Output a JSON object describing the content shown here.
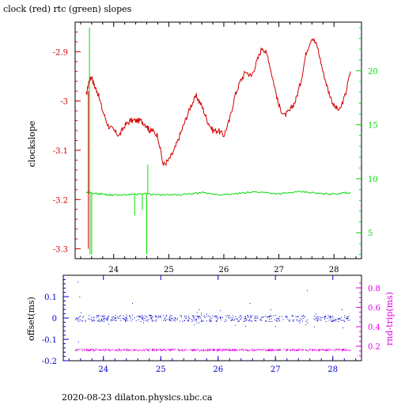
{
  "title": "clock (red) rtc (green) slopes",
  "footer": "2020-08-23  dilaton.physics.ubc.ca",
  "colors": {
    "red": "#d40000",
    "green": "#00dd00",
    "blue": "#0000cc",
    "magenta": "#e000e0",
    "black": "#000000"
  },
  "chart_data": [
    {
      "type": "line",
      "ylabel": "clockslope",
      "xlim": [
        23.3,
        28.5
      ],
      "ylim": [
        -3.32,
        -2.84
      ],
      "x_ticks": [
        "24",
        "25",
        "26",
        "27",
        "28"
      ],
      "y_ticks": [
        "-2.9",
        "-3",
        "-3.1",
        "-3.2",
        "-3.3"
      ],
      "right_ylim": [
        2.6,
        24.5
      ],
      "right_y_ticks": [
        "5",
        "10",
        "15",
        "20"
      ],
      "series": [
        {
          "color": "red",
          "x": [
            23.5,
            23.55,
            23.6,
            23.65,
            23.7,
            23.8,
            23.9,
            24.0,
            24.1,
            24.2,
            24.3,
            24.4,
            24.5,
            24.6,
            24.65,
            24.7,
            24.8,
            24.9,
            25.0,
            25.1,
            25.2,
            25.3,
            25.4,
            25.5,
            25.6,
            25.7,
            25.8,
            25.9,
            26.0,
            26.1,
            26.2,
            26.3,
            26.4,
            26.5,
            26.6,
            26.7,
            26.8,
            26.9,
            27.0,
            27.1,
            27.2,
            27.3,
            27.4,
            27.5,
            27.6,
            27.7,
            27.8,
            27.9,
            28.0,
            28.1,
            28.2,
            28.3
          ],
          "y": [
            -2.99,
            -2.96,
            -2.95,
            -2.97,
            -2.98,
            -3.02,
            -3.05,
            -3.06,
            -3.07,
            -3.05,
            -3.04,
            -3.04,
            -3.04,
            -3.05,
            -3.06,
            -3.06,
            -3.07,
            -3.13,
            -3.12,
            -3.1,
            -3.07,
            -3.04,
            -3.01,
            -2.99,
            -3.01,
            -3.04,
            -3.06,
            -3.06,
            -3.07,
            -3.04,
            -2.99,
            -2.96,
            -2.94,
            -2.95,
            -2.92,
            -2.89,
            -2.91,
            -2.96,
            -3.01,
            -3.03,
            -3.02,
            -3.0,
            -2.96,
            -2.9,
            -2.87,
            -2.89,
            -2.94,
            -2.98,
            -3.01,
            -3.02,
            -2.99,
            -2.94
          ]
        },
        {
          "color": "green",
          "x": [
            23.5,
            23.6,
            23.7,
            23.8,
            23.9,
            24.0,
            24.2,
            24.4,
            24.6,
            24.8,
            25.0,
            25.2,
            25.4,
            25.6,
            25.8,
            26.0,
            26.2,
            26.4,
            26.6,
            26.8,
            27.0,
            27.2,
            27.4,
            27.6,
            27.8,
            28.0,
            28.2,
            28.3
          ],
          "y": [
            8.7,
            8.7,
            8.6,
            8.6,
            8.5,
            8.5,
            8.5,
            8.6,
            8.6,
            8.5,
            8.5,
            8.5,
            8.6,
            8.7,
            8.6,
            8.5,
            8.6,
            8.7,
            8.8,
            8.7,
            8.6,
            8.7,
            8.8,
            8.7,
            8.6,
            8.6,
            8.7,
            8.7
          ]
        }
      ],
      "spikes": [
        {
          "x": 23.56,
          "from": 8.7,
          "to": 24.0
        },
        {
          "x": 23.57,
          "from": 8.7,
          "to": 3.0
        },
        {
          "x": 23.6,
          "from": 8.7,
          "to": 3.0
        },
        {
          "x": 24.38,
          "from": 8.5,
          "to": 6.6
        },
        {
          "x": 24.52,
          "from": 8.6,
          "to": 7.1
        },
        {
          "x": 24.6,
          "from": 8.6,
          "to": 3.0
        },
        {
          "x": 24.62,
          "from": 8.6,
          "to": 11.3
        }
      ]
    },
    {
      "type": "scatter",
      "ylabel": "offset(ms)",
      "right_ylabel": "rnd-trip(ms)",
      "xlim": [
        23.3,
        28.5
      ],
      "ylim": [
        -0.2,
        0.2
      ],
      "x_ticks": [
        "24",
        "25",
        "26",
        "27",
        "28"
      ],
      "y_ticks": [
        "0.1",
        "0",
        "-0.1",
        "-0.2"
      ],
      "right_ylim": [
        0.05,
        0.93
      ],
      "right_y_ticks": [
        "0.2",
        "0.4",
        "0.6",
        "0.8"
      ],
      "offset_approx": 0,
      "roundtrip_approx": 0.165
    }
  ]
}
